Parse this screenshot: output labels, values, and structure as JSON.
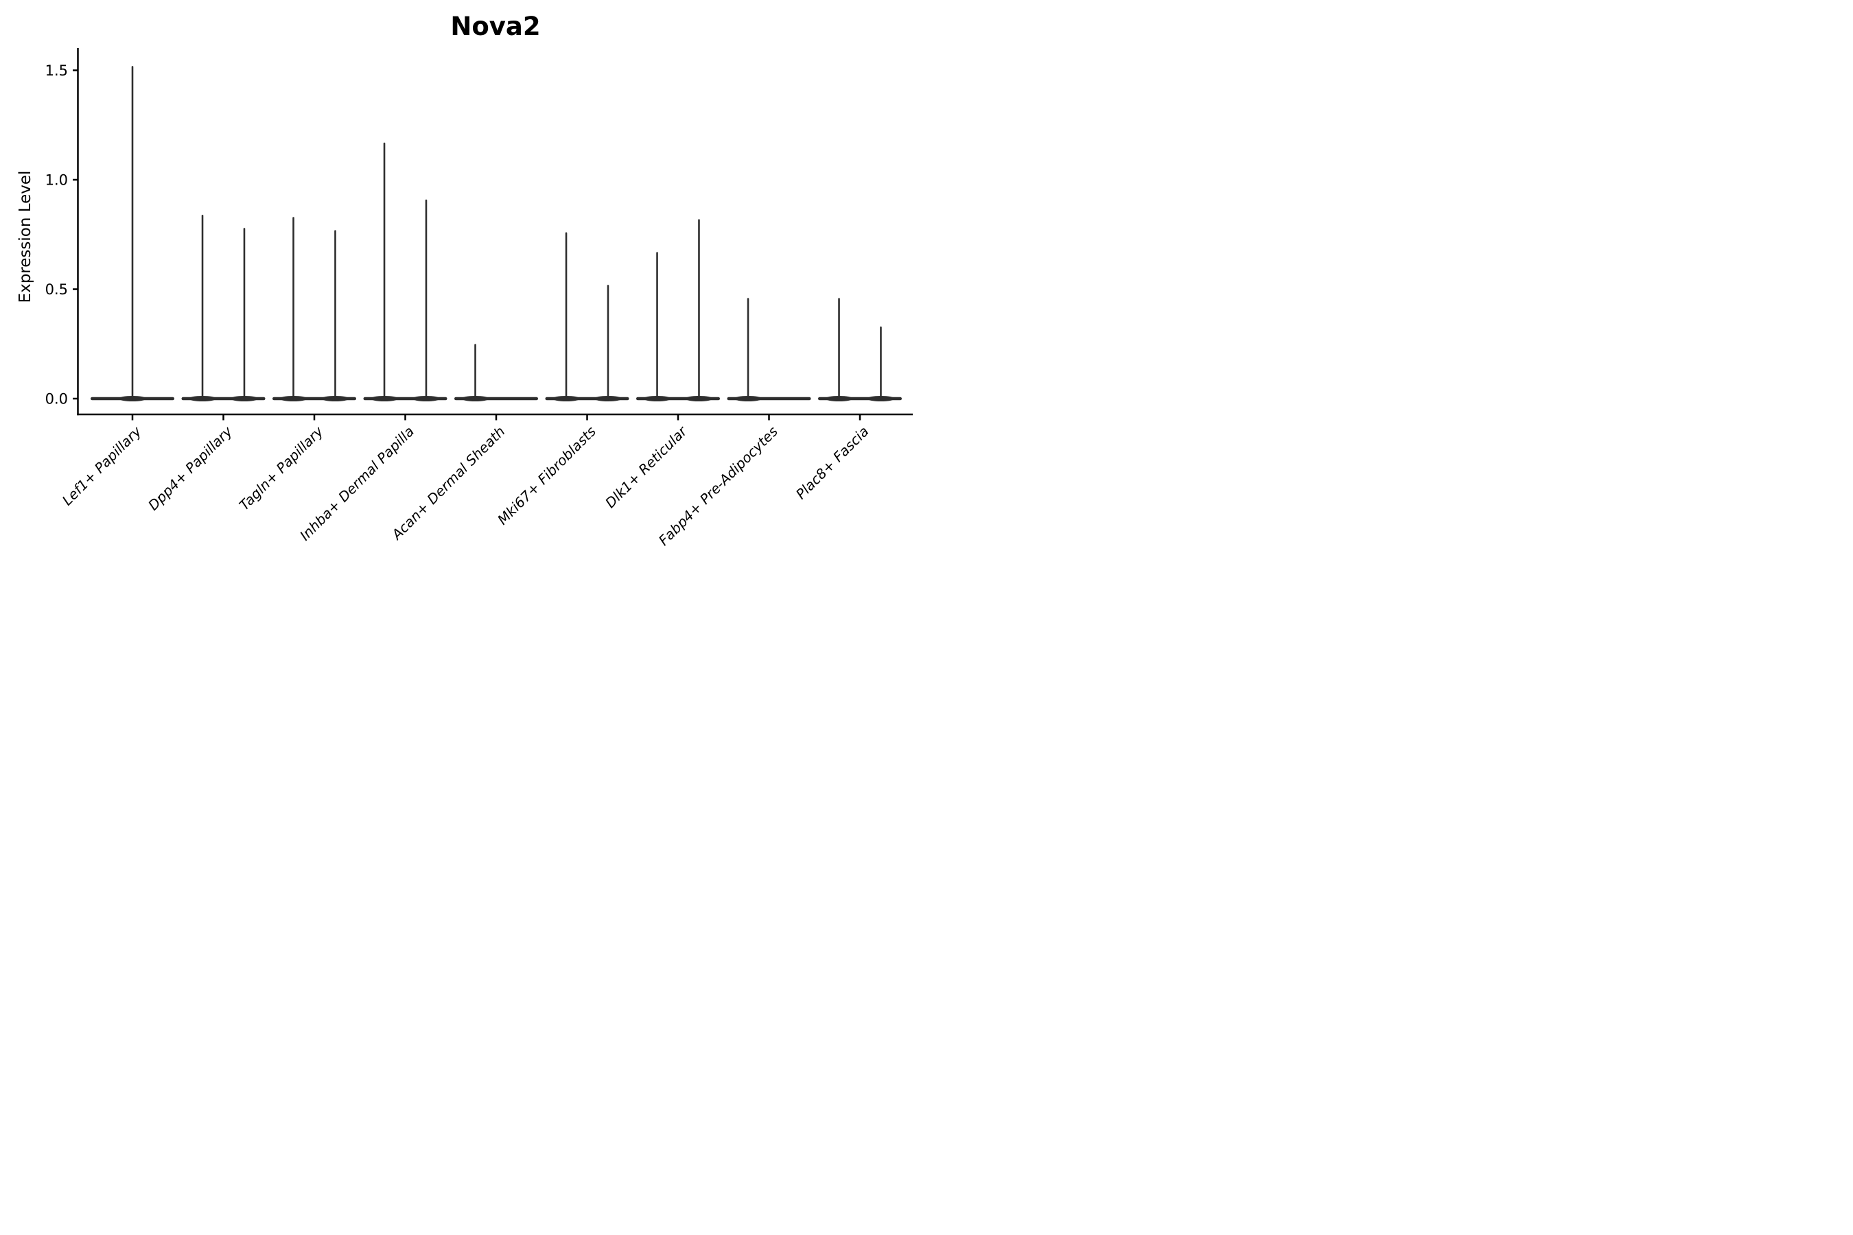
{
  "chart_data": {
    "type": "violin",
    "title": "Nova2",
    "ylabel": "Expression Level",
    "xlabel": "",
    "grid": false,
    "legend": "none",
    "background": "#ffffff",
    "axis_color": "#000000",
    "violin_color": "#2e2e2e",
    "ylim": [
      -0.07,
      1.6
    ],
    "yticks": [
      {
        "value": 0.0,
        "label": "0.0"
      },
      {
        "value": 0.5,
        "label": "0.5"
      },
      {
        "value": 1.0,
        "label": "1.0"
      },
      {
        "value": 1.5,
        "label": "1.5"
      }
    ],
    "categories": [
      "Lef1+ Papillary",
      "Dpp4+ Papillary",
      "Tagln+ Papillary",
      "Inhba+ Dermal Papilla",
      "Acan+ Dermal Sheath",
      "Mki67+ Fibroblasts",
      "Dlk1+ Reticular",
      "Fabp4+ Pre-Adipocytes",
      "Plac8+ Fascia"
    ],
    "series": [
      {
        "category": "Lef1+ Papillary",
        "spikes": [
          {
            "offset": 0,
            "max": 1.52
          }
        ]
      },
      {
        "category": "Dpp4+ Papillary",
        "spikes": [
          {
            "offset": -0.23,
            "max": 0.84
          },
          {
            "offset": 0.23,
            "max": 0.78
          }
        ]
      },
      {
        "category": "Tagln+ Papillary",
        "spikes": [
          {
            "offset": -0.23,
            "max": 0.83
          },
          {
            "offset": 0.23,
            "max": 0.77
          }
        ]
      },
      {
        "category": "Inhba+ Dermal Papilla",
        "spikes": [
          {
            "offset": -0.23,
            "max": 1.17
          },
          {
            "offset": 0.23,
            "max": 0.91
          }
        ]
      },
      {
        "category": "Acan+ Dermal Sheath",
        "spikes": [
          {
            "offset": -0.23,
            "max": 0.25
          }
        ]
      },
      {
        "category": "Mki67+ Fibroblasts",
        "spikes": [
          {
            "offset": -0.23,
            "max": 0.76
          },
          {
            "offset": 0.23,
            "max": 0.52
          }
        ]
      },
      {
        "category": "Dlk1+ Reticular",
        "spikes": [
          {
            "offset": -0.23,
            "max": 0.67
          },
          {
            "offset": 0.23,
            "max": 0.82
          }
        ]
      },
      {
        "category": "Fabp4+ Pre-Adipocytes",
        "spikes": [
          {
            "offset": -0.23,
            "max": 0.46
          }
        ]
      },
      {
        "category": "Plac8+ Fascia",
        "spikes": [
          {
            "offset": -0.23,
            "max": 0.46
          },
          {
            "offset": 0.23,
            "max": 0.33
          }
        ]
      }
    ]
  }
}
